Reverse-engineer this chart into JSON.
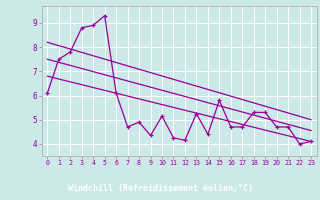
{
  "background_color": "#cce8e8",
  "grid_color": "#ffffff",
  "line_color": "#990099",
  "xlabel": "Windchill (Refroidissement éolien,°C)",
  "xlabel_bg": "#8800aa",
  "xlabel_fg": "#ffffff",
  "xlim": [
    -0.5,
    23.5
  ],
  "ylim": [
    3.5,
    9.7
  ],
  "yticks": [
    4,
    5,
    6,
    7,
    8,
    9
  ],
  "xticks": [
    0,
    1,
    2,
    3,
    4,
    5,
    6,
    7,
    8,
    9,
    10,
    11,
    12,
    13,
    14,
    15,
    16,
    17,
    18,
    19,
    20,
    21,
    22,
    23
  ],
  "series1_x": [
    0,
    1,
    2,
    3,
    4,
    5,
    6,
    7,
    8,
    9,
    10,
    11,
    12,
    13,
    14,
    15,
    16,
    17,
    18,
    19,
    20,
    21,
    22,
    23
  ],
  "series1_y": [
    6.1,
    7.5,
    7.8,
    8.8,
    8.9,
    9.3,
    6.1,
    4.7,
    4.9,
    4.35,
    5.15,
    4.25,
    4.15,
    5.25,
    4.4,
    5.8,
    4.7,
    4.7,
    5.3,
    5.3,
    4.7,
    4.7,
    4.0,
    4.1
  ],
  "trend1_x": [
    0,
    23
  ],
  "trend1_y": [
    8.2,
    5.0
  ],
  "trend2_x": [
    0,
    23
  ],
  "trend2_y": [
    7.5,
    4.55
  ],
  "trend3_x": [
    0,
    23
  ],
  "trend3_y": [
    6.8,
    4.1
  ]
}
